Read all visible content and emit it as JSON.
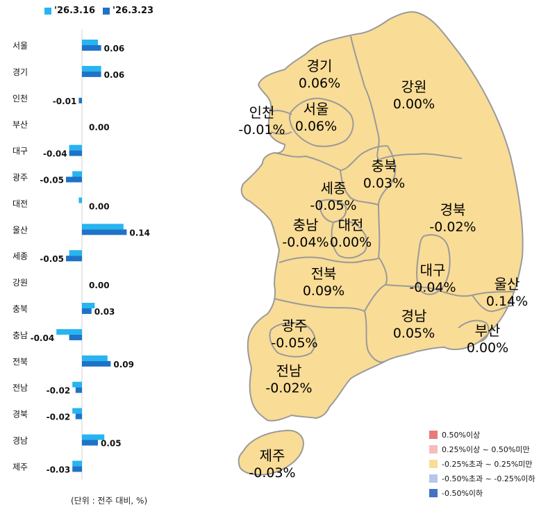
{
  "chart_data": {
    "type": "bar",
    "orientation": "horizontal",
    "categories": [
      "서울",
      "경기",
      "인천",
      "부산",
      "대구",
      "광주",
      "대전",
      "울산",
      "세종",
      "강원",
      "충북",
      "충남",
      "전북",
      "전남",
      "경북",
      "경남",
      "제주"
    ],
    "series": [
      {
        "name": "'26.3.16",
        "color": "#26B5F0",
        "values": [
          0.05,
          0.06,
          0.0,
          0.0,
          -0.04,
          -0.03,
          -0.01,
          0.13,
          -0.04,
          0.0,
          0.04,
          -0.08,
          0.08,
          -0.03,
          -0.03,
          0.07,
          -0.03
        ]
      },
      {
        "name": "'26.3.23",
        "color": "#1E73C8",
        "values": [
          0.06,
          0.06,
          -0.01,
          0.0,
          -0.04,
          -0.05,
          0.0,
          0.14,
          -0.05,
          0.0,
          0.03,
          -0.04,
          0.09,
          -0.02,
          -0.02,
          0.05,
          -0.03
        ]
      }
    ],
    "value_labels": [
      "0.06",
      "0.06",
      "-0.01",
      "0.00",
      "-0.04",
      "-0.05",
      "0.00",
      "0.14",
      "-0.05",
      "0.00",
      "0.03",
      "-0.04",
      "0.09",
      "-0.02",
      "-0.02",
      "0.05",
      "-0.03"
    ],
    "unit_note": "(단위 : 전주 대비, %)",
    "grid": false,
    "legend_position": "top"
  },
  "map": {
    "regions": [
      {
        "name": "경기",
        "value": "0.06%"
      },
      {
        "name": "강원",
        "value": "0.00%"
      },
      {
        "name": "인천",
        "value": "-0.01%"
      },
      {
        "name": "서울",
        "value": "0.06%"
      },
      {
        "name": "충북",
        "value": "0.03%"
      },
      {
        "name": "세종",
        "value": "-0.05%"
      },
      {
        "name": "경북",
        "value": "-0.02%"
      },
      {
        "name": "충남",
        "value": "-0.04%"
      },
      {
        "name": "대전",
        "value": "0.00%"
      },
      {
        "name": "전북",
        "value": "0.09%"
      },
      {
        "name": "대구",
        "value": "-0.04%"
      },
      {
        "name": "울산",
        "value": "0.14%"
      },
      {
        "name": "광주",
        "value": "-0.05%"
      },
      {
        "name": "경남",
        "value": "0.05%"
      },
      {
        "name": "부산",
        "value": "0.00%"
      },
      {
        "name": "전남",
        "value": "-0.02%"
      },
      {
        "name": "제주",
        "value": "-0.03%"
      }
    ],
    "fill_color": "#F9DC96",
    "border_color": "#9A9A9A",
    "legend": [
      {
        "label": "0.50%이상",
        "color": "#E87A7A"
      },
      {
        "label": "0.25%이상 ~ 0.50%미만",
        "color": "#F5BDBD"
      },
      {
        "label": "-0.25%초과 ~ 0.25%미만",
        "color": "#F9DC96"
      },
      {
        "label": "-0.50%초과 ~ -0.25%이하",
        "color": "#B7C7E8"
      },
      {
        "label": "-0.50%이하",
        "color": "#4472C4"
      }
    ]
  }
}
